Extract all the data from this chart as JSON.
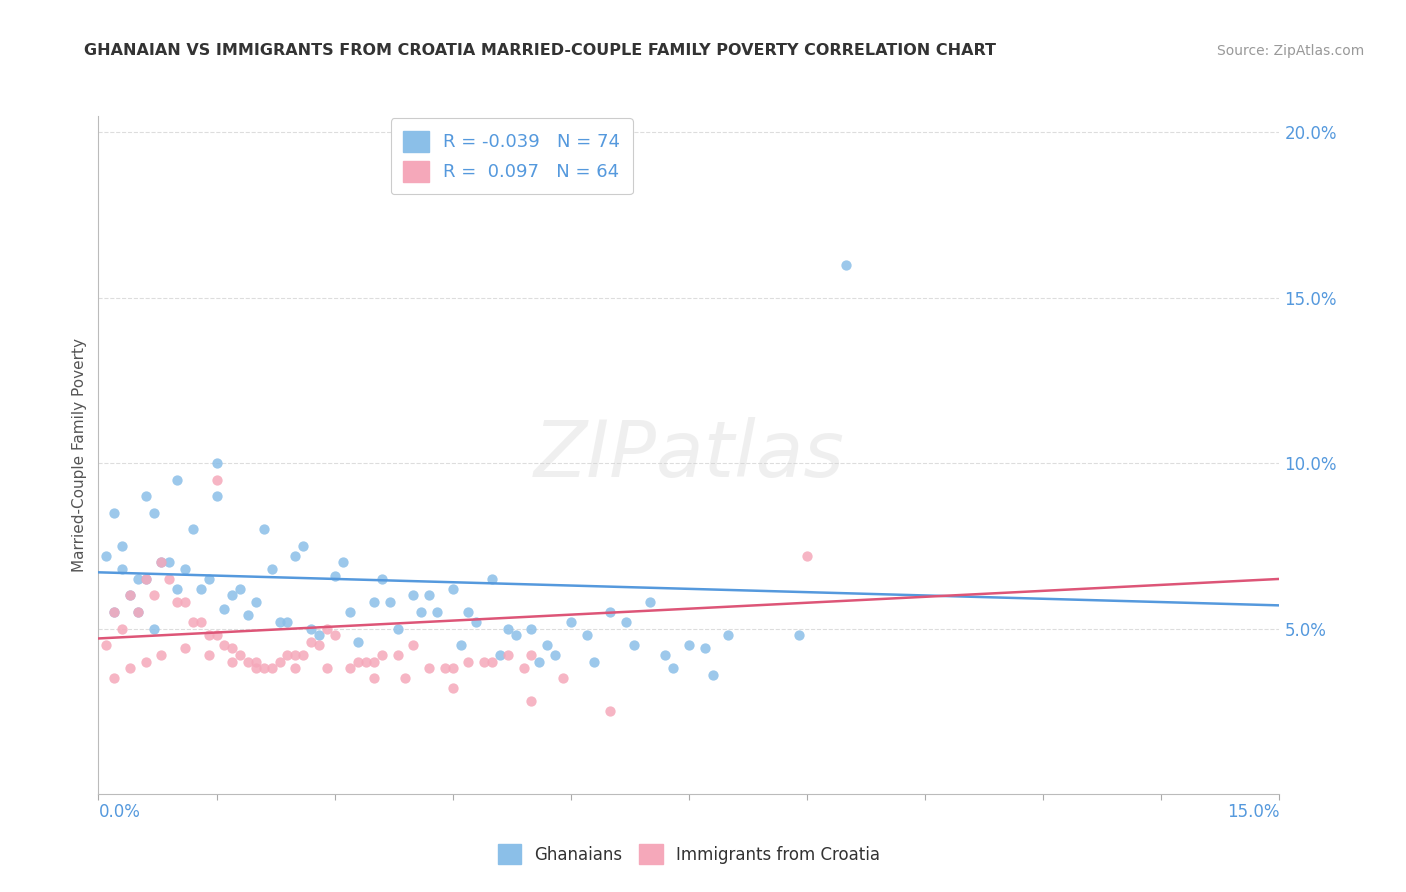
{
  "title": "GHANAIAN VS IMMIGRANTS FROM CROATIA MARRIED-COUPLE FAMILY POVERTY CORRELATION CHART",
  "source": "Source: ZipAtlas.com",
  "ylabel": "Married-Couple Family Poverty",
  "xmin": 0.0,
  "xmax": 0.15,
  "ymin": 0.0,
  "ymax": 0.205,
  "yticks": [
    0.05,
    0.1,
    0.15,
    0.2
  ],
  "ytick_labels": [
    "5.0%",
    "10.0%",
    "15.0%",
    "20.0%"
  ],
  "blue_R": "-0.039",
  "blue_N": "74",
  "pink_R": "0.097",
  "pink_N": "64",
  "blue_color": "#8bbfe8",
  "pink_color": "#f5a8ba",
  "blue_line_color": "#5599dd",
  "pink_line_color": "#dd5577",
  "watermark_text": "ZIPatlas",
  "legend_label_blue": "Ghanaians",
  "legend_label_pink": "Immigrants from Croatia",
  "blue_line_y0": 0.067,
  "blue_line_y1": 0.057,
  "pink_line_y0": 0.047,
  "pink_line_y1": 0.065,
  "blue_scatter_x": [
    0.005,
    0.008,
    0.003,
    0.012,
    0.007,
    0.015,
    0.018,
    0.022,
    0.025,
    0.03,
    0.035,
    0.04,
    0.045,
    0.05,
    0.055,
    0.06,
    0.065,
    0.07,
    0.075,
    0.08,
    0.002,
    0.004,
    0.006,
    0.009,
    0.011,
    0.013,
    0.016,
    0.019,
    0.023,
    0.027,
    0.032,
    0.037,
    0.042,
    0.047,
    0.052,
    0.057,
    0.062,
    0.067,
    0.072,
    0.077,
    0.001,
    0.003,
    0.005,
    0.007,
    0.01,
    0.014,
    0.017,
    0.02,
    0.024,
    0.028,
    0.033,
    0.038,
    0.043,
    0.048,
    0.053,
    0.058,
    0.063,
    0.068,
    0.073,
    0.078,
    0.002,
    0.006,
    0.01,
    0.015,
    0.021,
    0.026,
    0.031,
    0.036,
    0.041,
    0.046,
    0.051,
    0.056,
    0.089,
    0.095
  ],
  "blue_scatter_y": [
    0.065,
    0.07,
    0.075,
    0.08,
    0.085,
    0.09,
    0.062,
    0.068,
    0.072,
    0.066,
    0.058,
    0.06,
    0.062,
    0.065,
    0.05,
    0.052,
    0.055,
    0.058,
    0.045,
    0.048,
    0.055,
    0.06,
    0.065,
    0.07,
    0.068,
    0.062,
    0.056,
    0.054,
    0.052,
    0.05,
    0.055,
    0.058,
    0.06,
    0.055,
    0.05,
    0.045,
    0.048,
    0.052,
    0.042,
    0.044,
    0.072,
    0.068,
    0.055,
    0.05,
    0.062,
    0.065,
    0.06,
    0.058,
    0.052,
    0.048,
    0.046,
    0.05,
    0.055,
    0.052,
    0.048,
    0.042,
    0.04,
    0.045,
    0.038,
    0.036,
    0.085,
    0.09,
    0.095,
    0.1,
    0.08,
    0.075,
    0.07,
    0.065,
    0.055,
    0.045,
    0.042,
    0.04,
    0.048,
    0.16
  ],
  "pink_scatter_x": [
    0.002,
    0.004,
    0.006,
    0.008,
    0.01,
    0.012,
    0.014,
    0.016,
    0.018,
    0.02,
    0.022,
    0.025,
    0.028,
    0.03,
    0.033,
    0.036,
    0.04,
    0.045,
    0.05,
    0.055,
    0.001,
    0.003,
    0.005,
    0.007,
    0.009,
    0.011,
    0.013,
    0.015,
    0.017,
    0.019,
    0.021,
    0.024,
    0.027,
    0.029,
    0.032,
    0.035,
    0.038,
    0.042,
    0.047,
    0.052,
    0.002,
    0.004,
    0.006,
    0.008,
    0.011,
    0.014,
    0.017,
    0.02,
    0.023,
    0.026,
    0.029,
    0.034,
    0.039,
    0.044,
    0.049,
    0.054,
    0.059,
    0.09,
    0.015,
    0.025,
    0.035,
    0.045,
    0.055,
    0.065
  ],
  "pink_scatter_y": [
    0.055,
    0.06,
    0.065,
    0.07,
    0.058,
    0.052,
    0.048,
    0.045,
    0.042,
    0.04,
    0.038,
    0.042,
    0.045,
    0.048,
    0.04,
    0.042,
    0.045,
    0.038,
    0.04,
    0.042,
    0.045,
    0.05,
    0.055,
    0.06,
    0.065,
    0.058,
    0.052,
    0.048,
    0.044,
    0.04,
    0.038,
    0.042,
    0.046,
    0.05,
    0.038,
    0.04,
    0.042,
    0.038,
    0.04,
    0.042,
    0.035,
    0.038,
    0.04,
    0.042,
    0.044,
    0.042,
    0.04,
    0.038,
    0.04,
    0.042,
    0.038,
    0.04,
    0.035,
    0.038,
    0.04,
    0.038,
    0.035,
    0.072,
    0.095,
    0.038,
    0.035,
    0.032,
    0.028,
    0.025
  ]
}
